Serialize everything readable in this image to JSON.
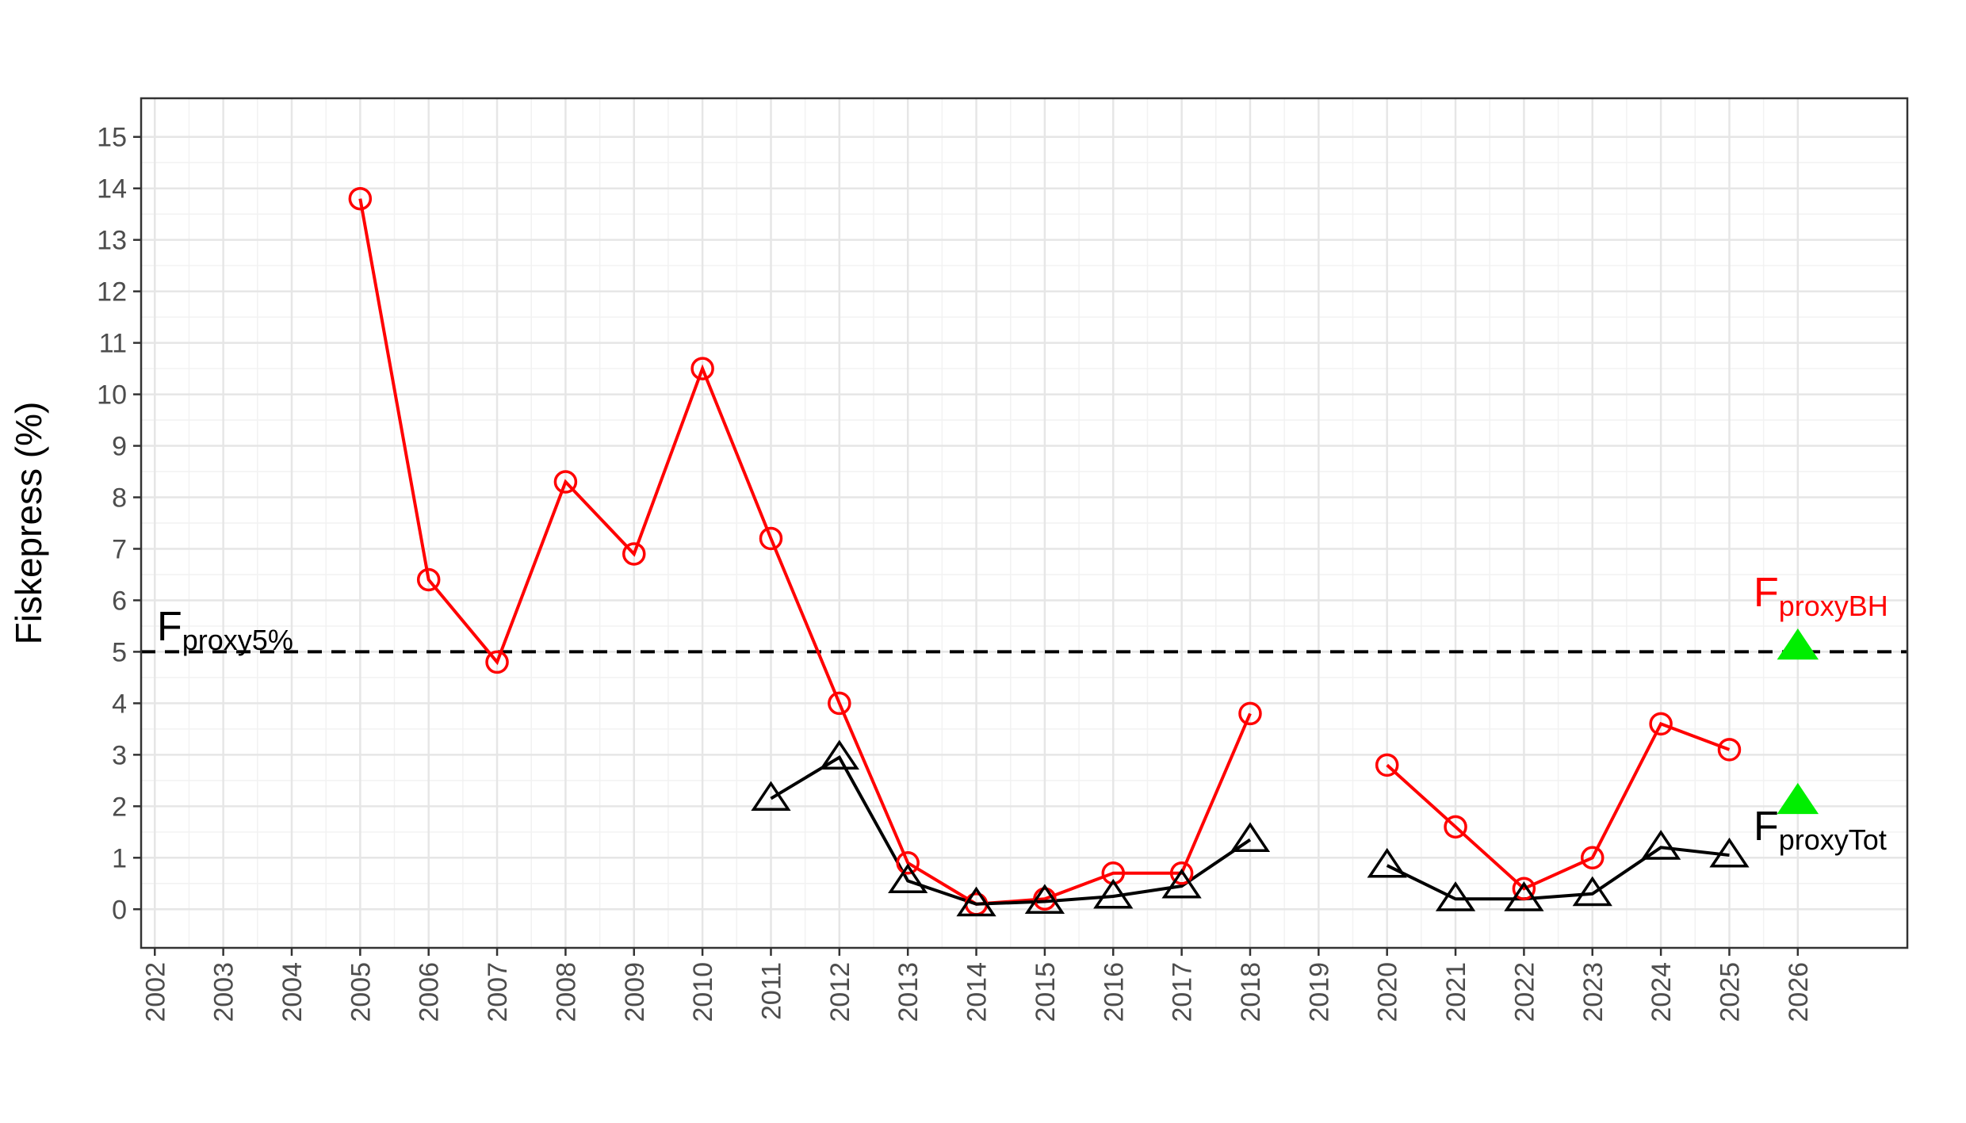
{
  "chart_data": {
    "type": "line",
    "title": "",
    "xlabel": "",
    "ylabel": "Fiskepress (%)",
    "xlim": [
      2001.8,
      2027.6
    ],
    "ylim": [
      -0.75,
      15.75
    ],
    "x_ticks": [
      "2002",
      "2003",
      "2004",
      "2005",
      "2006",
      "2007",
      "2008",
      "2009",
      "2010",
      "2011",
      "2012",
      "2013",
      "2014",
      "2015",
      "2016",
      "2017",
      "2018",
      "2019",
      "2020",
      "2021",
      "2022",
      "2023",
      "2024",
      "2025",
      "2026"
    ],
    "x_tick_years": [
      2002,
      2003,
      2004,
      2005,
      2006,
      2007,
      2008,
      2009,
      2010,
      2011,
      2012,
      2013,
      2014,
      2015,
      2016,
      2017,
      2018,
      2019,
      2020,
      2021,
      2022,
      2023,
      2024,
      2025,
      2026
    ],
    "y_ticks": [
      0,
      1,
      2,
      3,
      4,
      5,
      6,
      7,
      8,
      9,
      10,
      11,
      12,
      13,
      14,
      15
    ],
    "grid": true,
    "series": [
      {
        "color": "#ff0000",
        "marker": "open-circle",
        "segments": [
          [
            [
              2005,
              13.8
            ],
            [
              2006,
              6.4
            ],
            [
              2007,
              4.8
            ],
            [
              2008,
              8.3
            ],
            [
              2009,
              6.9
            ],
            [
              2010,
              10.5
            ],
            [
              2011,
              7.2
            ],
            [
              2012,
              4.0
            ],
            [
              2013,
              0.9
            ],
            [
              2014,
              0.1
            ],
            [
              2015,
              0.2
            ],
            [
              2016,
              0.7
            ],
            [
              2017,
              0.7
            ],
            [
              2018,
              3.8
            ]
          ],
          [
            [
              2020,
              2.8
            ],
            [
              2021,
              1.6
            ],
            [
              2022,
              0.4
            ],
            [
              2023,
              1.0
            ],
            [
              2024,
              3.6
            ],
            [
              2025,
              3.1
            ]
          ]
        ]
      },
      {
        "color": "#000000",
        "marker": "open-triangle",
        "segments": [
          [
            [
              2011,
              2.15
            ],
            [
              2012,
              2.95
            ],
            [
              2013,
              0.55
            ],
            [
              2014,
              0.1
            ],
            [
              2015,
              0.15
            ],
            [
              2016,
              0.25
            ],
            [
              2017,
              0.45
            ],
            [
              2018,
              1.35
            ]
          ],
          [
            [
              2020,
              0.85
            ],
            [
              2021,
              0.2
            ],
            [
              2022,
              0.2
            ],
            [
              2023,
              0.3
            ],
            [
              2024,
              1.2
            ],
            [
              2025,
              1.05
            ]
          ]
        ]
      }
    ],
    "reference_points": [
      {
        "x": 2026,
        "y": 5.1,
        "color": "#00ee00",
        "marker": "filled-triangle"
      },
      {
        "x": 2026,
        "y": 2.1,
        "color": "#00ee00",
        "marker": "filled-triangle"
      }
    ],
    "hline": {
      "y": 5,
      "style": "dashed",
      "color": "#000000"
    },
    "annotations": [
      {
        "main": "F",
        "sub": "proxy5%",
        "color": "#000000"
      },
      {
        "main": "F",
        "sub": "proxyBH",
        "color": "#ff0000"
      },
      {
        "main": "F",
        "sub": "proxyTot",
        "color": "#000000"
      }
    ]
  }
}
